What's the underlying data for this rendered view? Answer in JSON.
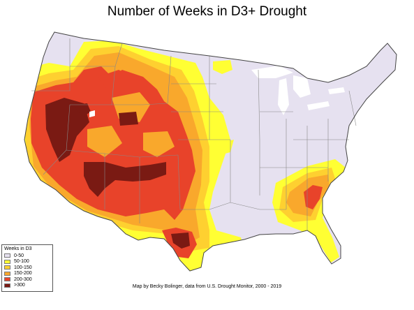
{
  "title": "Number of Weeks in D3+ Drought",
  "credit": "Map by Becky Bolinger, data from U.S. Drought Monitor, 2000 - 2019",
  "legend": {
    "title": "Weeks in D3",
    "items": [
      {
        "label": "0-50",
        "color": "#e6e1f0"
      },
      {
        "label": "50-100",
        "color": "#ffff33"
      },
      {
        "label": "100-150",
        "color": "#fed030"
      },
      {
        "label": "150-200",
        "color": "#f9a82c"
      },
      {
        "label": "200-300",
        "color": "#e8432a"
      },
      {
        "label": ">300",
        "color": "#7a1a13"
      }
    ]
  },
  "colors": {
    "land": "#e6e1f0",
    "lake": "#ffffff",
    "border": "#444444"
  }
}
